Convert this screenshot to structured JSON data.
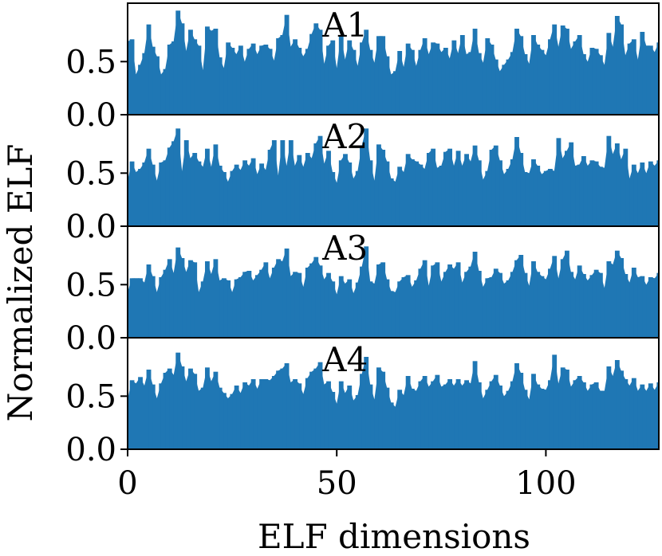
{
  "chart_data": {
    "type": "bar",
    "xlabel": "ELF dimensions",
    "ylabel": "Normalized ELF",
    "xlim": [
      0,
      127
    ],
    "ylim": [
      0,
      1.05
    ],
    "xticks": [
      0,
      50,
      100
    ],
    "yticks": [
      0.0,
      0.5
    ],
    "grid": false,
    "bar_color": "#1f77b4",
    "panels": [
      {
        "label": "A1",
        "values": [
          0.69,
          0.71,
          0.38,
          0.47,
          0.58,
          0.85,
          0.64,
          0.55,
          0.38,
          0.43,
          0.66,
          0.69,
          0.98,
          0.86,
          0.6,
          0.8,
          0.71,
          0.65,
          0.42,
          0.83,
          0.79,
          0.81,
          0.54,
          0.44,
          0.68,
          0.63,
          0.57,
          0.65,
          0.5,
          0.62,
          0.67,
          0.57,
          0.65,
          0.66,
          0.62,
          0.51,
          0.72,
          0.75,
          0.94,
          0.64,
          0.71,
          0.63,
          0.55,
          0.62,
          0.76,
          0.86,
          0.8,
          0.48,
          0.65,
          0.7,
          0.44,
          0.74,
          0.52,
          0.7,
          0.61,
          0.46,
          0.68,
          0.8,
          0.61,
          0.49,
          0.74,
          0.74,
          0.55,
          0.38,
          0.41,
          0.6,
          0.45,
          0.67,
          0.61,
          0.46,
          0.61,
          0.72,
          0.57,
          0.68,
          0.67,
          0.59,
          0.63,
          0.53,
          0.7,
          0.58,
          0.75,
          0.57,
          0.59,
          0.81,
          0.58,
          0.49,
          0.72,
          0.66,
          0.52,
          0.41,
          0.47,
          0.52,
          0.59,
          0.81,
          0.74,
          0.57,
          0.48,
          0.75,
          0.66,
          0.61,
          0.56,
          0.71,
          0.85,
          0.64,
          0.84,
          0.81,
          0.62,
          0.69,
          0.75,
          0.57,
          0.5,
          0.63,
          0.62,
          0.56,
          0.47,
          0.77,
          0.64,
          0.93,
          0.85,
          0.56,
          0.67,
          0.71,
          0.52,
          0.78,
          0.65,
          0.65,
          0.59,
          0.68
        ]
      },
      {
        "label": "A2",
        "values": [
          0.43,
          0.61,
          0.51,
          0.54,
          0.6,
          0.73,
          0.58,
          0.43,
          0.6,
          0.62,
          0.74,
          0.8,
          0.92,
          0.52,
          0.81,
          0.64,
          0.69,
          0.61,
          0.56,
          0.73,
          0.56,
          0.77,
          0.57,
          0.51,
          0.42,
          0.52,
          0.58,
          0.53,
          0.62,
          0.57,
          0.64,
          0.49,
          0.59,
          0.53,
          0.72,
          0.81,
          0.48,
          0.81,
          0.57,
          0.81,
          0.57,
          0.67,
          0.56,
          0.69,
          0.64,
          0.78,
          0.85,
          0.59,
          0.71,
          0.51,
          0.41,
          0.62,
          0.68,
          0.6,
          0.45,
          0.52,
          0.76,
          0.92,
          0.62,
          0.43,
          0.77,
          0.72,
          0.61,
          0.45,
          0.42,
          0.56,
          0.51,
          0.68,
          0.63,
          0.61,
          0.58,
          0.54,
          0.69,
          0.73,
          0.55,
          0.57,
          0.7,
          0.73,
          0.57,
          0.71,
          0.57,
          0.68,
          0.61,
          0.76,
          0.62,
          0.44,
          0.52,
          0.72,
          0.76,
          0.62,
          0.49,
          0.54,
          0.63,
          0.84,
          0.69,
          0.51,
          0.5,
          0.63,
          0.57,
          0.49,
          0.52,
          0.54,
          0.52,
          0.83,
          0.64,
          0.71,
          0.79,
          0.57,
          0.58,
          0.66,
          0.57,
          0.62,
          0.61,
          0.56,
          0.55,
          0.85,
          0.68,
          0.78,
          0.63,
          0.73,
          0.45,
          0.58,
          0.5,
          0.6,
          0.5,
          0.61,
          0.57,
          0.62
        ]
      },
      {
        "label": "A3",
        "values": [
          0.43,
          0.56,
          0.56,
          0.56,
          0.52,
          0.69,
          0.58,
          0.43,
          0.57,
          0.64,
          0.74,
          0.61,
          0.85,
          0.75,
          0.62,
          0.73,
          0.71,
          0.43,
          0.53,
          0.72,
          0.6,
          0.74,
          0.54,
          0.56,
          0.54,
          0.43,
          0.55,
          0.57,
          0.62,
          0.63,
          0.54,
          0.59,
          0.64,
          0.71,
          0.56,
          0.66,
          0.74,
          0.72,
          0.84,
          0.58,
          0.62,
          0.61,
          0.48,
          0.66,
          0.7,
          0.76,
          0.68,
          0.55,
          0.61,
          0.53,
          0.41,
          0.58,
          0.51,
          0.55,
          0.42,
          0.52,
          0.67,
          0.86,
          0.53,
          0.51,
          0.69,
          0.71,
          0.55,
          0.44,
          0.43,
          0.53,
          0.57,
          0.59,
          0.48,
          0.54,
          0.65,
          0.73,
          0.49,
          0.68,
          0.71,
          0.53,
          0.62,
          0.69,
          0.65,
          0.71,
          0.52,
          0.62,
          0.67,
          0.81,
          0.63,
          0.48,
          0.56,
          0.57,
          0.65,
          0.61,
          0.51,
          0.54,
          0.62,
          0.73,
          0.78,
          0.61,
          0.49,
          0.72,
          0.62,
          0.58,
          0.55,
          0.65,
          0.77,
          0.56,
          0.74,
          0.82,
          0.62,
          0.55,
          0.68,
          0.6,
          0.54,
          0.59,
          0.64,
          0.61,
          0.47,
          0.72,
          0.69,
          0.82,
          0.75,
          0.6,
          0.52,
          0.66,
          0.57,
          0.58,
          0.5,
          0.57,
          0.56,
          0.61
        ]
      },
      {
        "label": "A4",
        "values": [
          0.47,
          0.65,
          0.62,
          0.68,
          0.6,
          0.75,
          0.61,
          0.48,
          0.62,
          0.72,
          0.76,
          0.7,
          0.91,
          0.78,
          0.64,
          0.76,
          0.71,
          0.55,
          0.58,
          0.77,
          0.64,
          0.73,
          0.58,
          0.53,
          0.48,
          0.52,
          0.6,
          0.53,
          0.63,
          0.6,
          0.66,
          0.57,
          0.66,
          0.66,
          0.65,
          0.69,
          0.74,
          0.76,
          0.81,
          0.63,
          0.66,
          0.62,
          0.52,
          0.67,
          0.73,
          0.76,
          0.82,
          0.61,
          0.64,
          0.54,
          0.43,
          0.64,
          0.53,
          0.6,
          0.46,
          0.51,
          0.71,
          0.87,
          0.61,
          0.47,
          0.77,
          0.73,
          0.58,
          0.44,
          0.4,
          0.56,
          0.51,
          0.69,
          0.57,
          0.55,
          0.64,
          0.69,
          0.59,
          0.64,
          0.7,
          0.59,
          0.61,
          0.66,
          0.6,
          0.66,
          0.6,
          0.65,
          0.62,
          0.83,
          0.63,
          0.48,
          0.56,
          0.64,
          0.7,
          0.6,
          0.5,
          0.55,
          0.64,
          0.81,
          0.72,
          0.56,
          0.47,
          0.71,
          0.61,
          0.57,
          0.56,
          0.65,
          0.89,
          0.62,
          0.77,
          0.75,
          0.59,
          0.65,
          0.69,
          0.63,
          0.55,
          0.61,
          0.63,
          0.55,
          0.55,
          0.78,
          0.69,
          0.84,
          0.74,
          0.66,
          0.6,
          0.67,
          0.55,
          0.61,
          0.55,
          0.62,
          0.56,
          0.63
        ]
      }
    ]
  }
}
